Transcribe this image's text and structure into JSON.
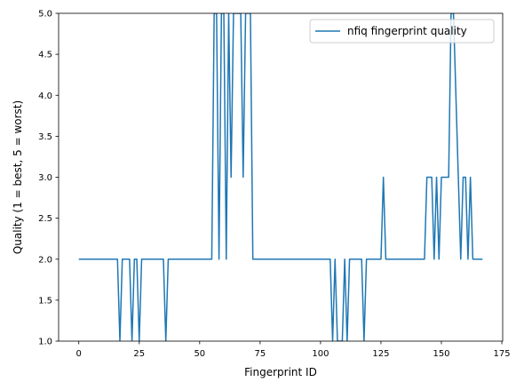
{
  "chart_data": {
    "type": "line",
    "title": "",
    "xlabel": "Fingerprint ID",
    "ylabel": "Quality (1 = best, 5 = worst)",
    "xlim": [
      -8.35,
      175.35
    ],
    "ylim": [
      1.0,
      5.0
    ],
    "x_ticks": [
      0,
      25,
      50,
      75,
      100,
      125,
      150,
      175
    ],
    "x_tick_labels": [
      "0",
      "25",
      "50",
      "75",
      "100",
      "125",
      "150",
      "175"
    ],
    "y_ticks": [
      1.0,
      1.5,
      2.0,
      2.5,
      3.0,
      3.5,
      4.0,
      4.5,
      5.0
    ],
    "y_tick_labels": [
      "1.0",
      "1.5",
      "2.0",
      "2.5",
      "3.0",
      "3.5",
      "4.0",
      "4.5",
      "5.0"
    ],
    "grid": false,
    "legend_position": "top-right",
    "series": [
      {
        "name": "nfiq fingerprint quality",
        "color": "#1f77b4",
        "x": [
          0,
          1,
          2,
          3,
          4,
          5,
          6,
          7,
          8,
          9,
          10,
          11,
          12,
          13,
          14,
          15,
          16,
          17,
          18,
          19,
          20,
          21,
          22,
          23,
          24,
          25,
          26,
          27,
          28,
          29,
          30,
          31,
          32,
          33,
          34,
          35,
          36,
          37,
          38,
          39,
          40,
          41,
          42,
          43,
          44,
          45,
          46,
          47,
          48,
          49,
          50,
          51,
          52,
          53,
          54,
          55,
          56,
          57,
          58,
          59,
          60,
          61,
          62,
          63,
          64,
          65,
          66,
          67,
          68,
          69,
          70,
          71,
          72,
          73,
          74,
          75,
          76,
          77,
          78,
          79,
          80,
          81,
          82,
          83,
          84,
          85,
          86,
          87,
          88,
          89,
          90,
          91,
          92,
          93,
          94,
          95,
          96,
          97,
          98,
          99,
          100,
          101,
          102,
          103,
          104,
          105,
          106,
          107,
          108,
          109,
          110,
          111,
          112,
          113,
          114,
          115,
          116,
          117,
          118,
          119,
          120,
          121,
          122,
          123,
          124,
          125,
          126,
          127,
          128,
          129,
          130,
          131,
          132,
          133,
          134,
          135,
          136,
          137,
          138,
          139,
          140,
          141,
          142,
          143,
          144,
          145,
          146,
          147,
          148,
          149,
          150,
          151,
          152,
          153,
          154,
          155,
          156,
          157,
          158,
          159,
          160,
          161,
          162,
          163,
          164,
          165,
          166,
          167
        ],
        "y": [
          2,
          2,
          2,
          2,
          2,
          2,
          2,
          2,
          2,
          2,
          2,
          2,
          2,
          2,
          2,
          2,
          2,
          1,
          2,
          2,
          2,
          2,
          1,
          2,
          2,
          1,
          2,
          2,
          2,
          2,
          2,
          2,
          2,
          2,
          2,
          2,
          1,
          2,
          2,
          2,
          2,
          2,
          2,
          2,
          2,
          2,
          2,
          2,
          2,
          2,
          2,
          2,
          2,
          2,
          2,
          2,
          5,
          5,
          2,
          5,
          5,
          2,
          5,
          3,
          5,
          5,
          5,
          5,
          3,
          5,
          5,
          5,
          2,
          2,
          2,
          2,
          2,
          2,
          2,
          2,
          2,
          2,
          2,
          2,
          2,
          2,
          2,
          2,
          2,
          2,
          2,
          2,
          2,
          2,
          2,
          2,
          2,
          2,
          2,
          2,
          2,
          2,
          2,
          2,
          2,
          1,
          2,
          1,
          1,
          1,
          2,
          1,
          2,
          2,
          2,
          2,
          2,
          2,
          1,
          2,
          2,
          2,
          2,
          2,
          2,
          2,
          3,
          2,
          2,
          2,
          2,
          2,
          2,
          2,
          2,
          2,
          2,
          2,
          2,
          2,
          2,
          2,
          2,
          2,
          3,
          3,
          3,
          2,
          3,
          2,
          3,
          3,
          3,
          3,
          5,
          5,
          4,
          3,
          2,
          3,
          3,
          2,
          3,
          2,
          2,
          2,
          2,
          2
        ]
      }
    ]
  }
}
